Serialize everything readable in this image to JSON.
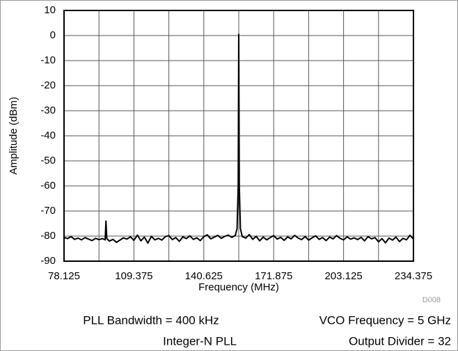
{
  "chart_data": {
    "type": "line",
    "ylabel": "Amplitude (dBm)",
    "xlabel": "Frequency (MHz)",
    "code": "D008",
    "annotations": [
      "PLL Bandwidth = 400 kHz",
      "VCO Frequency = 5 GHz",
      "Integer-N PLL",
      "Output Divider = 32"
    ],
    "xlim": [
      78.125,
      234.375
    ],
    "xticks": [
      78.125,
      109.375,
      140.625,
      171.875,
      203.125,
      234.375
    ],
    "xminor": [
      93.75,
      125,
      156.25,
      187.5,
      218.75
    ],
    "ylim": [
      -90,
      10
    ],
    "yticks": [
      10,
      0,
      -10,
      -20,
      -30,
      -40,
      -50,
      -60,
      -70,
      -80,
      -90
    ],
    "grid": true,
    "series": [
      {
        "color": "#000000",
        "x": [
          78.125,
          79.6875,
          81.25,
          82.8125,
          84.375,
          85.9375,
          87.5,
          89.0625,
          90.625,
          92.1875,
          93.75,
          95.3125,
          96.5,
          96.875,
          97.25,
          98.4375,
          100,
          101.5625,
          103.125,
          104.6875,
          106.25,
          107.8125,
          109.375,
          110.9375,
          112.5,
          114.0625,
          115.625,
          117.1875,
          118.75,
          120.3125,
          121.875,
          123.4375,
          125,
          126.5625,
          128.125,
          129.6875,
          131.25,
          132.8125,
          134.375,
          135.9375,
          137.5,
          139.0625,
          140.625,
          142.1875,
          143.75,
          145.3125,
          146.875,
          148.4375,
          150,
          151.5625,
          153.125,
          154.6875,
          155.5,
          156,
          156.25,
          156.5,
          157,
          157.8125,
          159.375,
          160.9375,
          162.5,
          164.0625,
          165.625,
          167.1875,
          168.75,
          170.3125,
          171.875,
          173.4375,
          175,
          176.5625,
          178.125,
          179.6875,
          181.25,
          182.8125,
          184.375,
          185.9375,
          187.5,
          189.0625,
          190.625,
          192.1875,
          193.75,
          195.3125,
          196.875,
          198.4375,
          200,
          201.5625,
          203.125,
          204.6875,
          206.25,
          207.8125,
          209.375,
          210.9375,
          212.5,
          214.0625,
          215.625,
          217.1875,
          218.75,
          220.3125,
          221.875,
          223.4375,
          225,
          226.5625,
          228.125,
          229.6875,
          231.25,
          232.8125,
          234.375
        ],
        "values": [
          -80.5,
          -81,
          -80.2,
          -81.3,
          -80.8,
          -81.5,
          -80.6,
          -81.2,
          -81.8,
          -80.9,
          -81.4,
          -81,
          -81.5,
          -74,
          -81,
          -82,
          -81.3,
          -82.5,
          -81.6,
          -80.7,
          -81.2,
          -80.3,
          -81.7,
          -79.6,
          -81.9,
          -80.4,
          -82.8,
          -80.1,
          -81.5,
          -80.9,
          -81.6,
          -80.2,
          -79.8,
          -81.4,
          -80.6,
          -82.1,
          -80.3,
          -81,
          -79.9,
          -81.3,
          -80.7,
          -81.8,
          -80.2,
          -79.5,
          -81.1,
          -80.4,
          -79.7,
          -80.9,
          -80.1,
          -79.6,
          -80.5,
          -79.8,
          -77,
          -60,
          0.5,
          -60,
          -77,
          -80.2,
          -80.8,
          -79.4,
          -81.3,
          -80.1,
          -81.9,
          -80.4,
          -81.5,
          -80.6,
          -79.8,
          -81.2,
          -80.5,
          -81.7,
          -80.3,
          -81.1,
          -79.7,
          -80.8,
          -81.4,
          -80.2,
          -81.6,
          -80.7,
          -79.9,
          -81.3,
          -80.6,
          -81.8,
          -80.4,
          -81.1,
          -79.8,
          -80.9,
          -81.5,
          -80.3,
          -81.2,
          -80.7,
          -81.4,
          -80.5,
          -81.9,
          -80.2,
          -81.1,
          -80.6,
          -82.3,
          -81,
          -82.7,
          -80.8,
          -81.6,
          -80.4,
          -82.2,
          -80.9,
          -81.5,
          -79.7,
          -81.2
        ]
      }
    ]
  }
}
